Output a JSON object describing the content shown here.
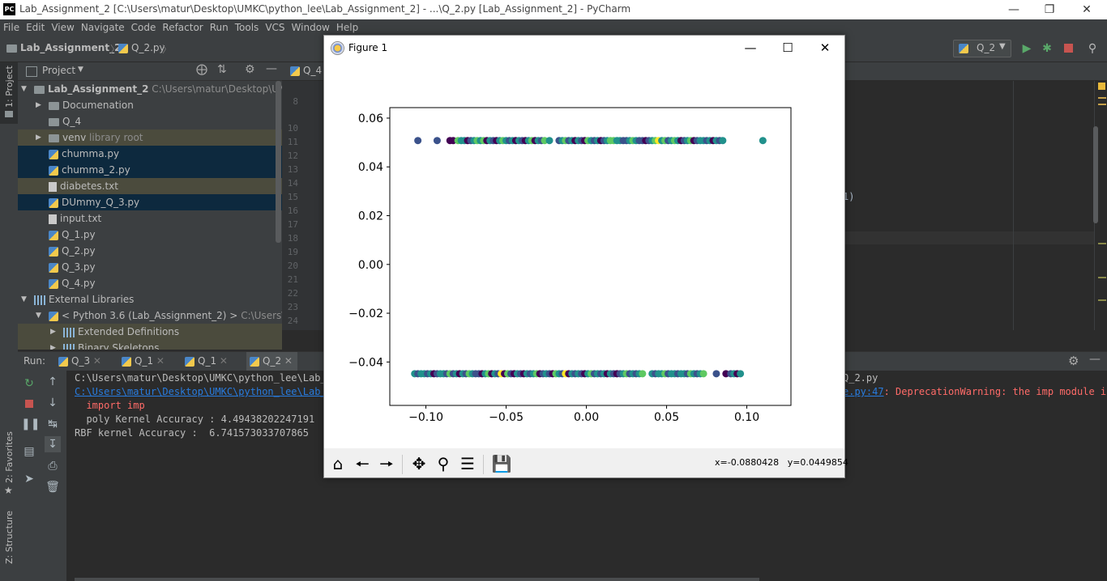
{
  "window": {
    "title": "Lab_Assignment_2 [C:\\Users\\matur\\Desktop\\UMKC\\python_lee\\Lab_Assignment_2] - ...\\Q_2.py [Lab_Assignment_2] - PyCharm",
    "logo": "PC",
    "controls": [
      "minimize-icon",
      "restore-icon",
      "close-icon"
    ]
  },
  "menu": [
    "File",
    "Edit",
    "View",
    "Navigate",
    "Code",
    "Refactor",
    "Run",
    "Tools",
    "VCS",
    "Window",
    "Help"
  ],
  "nav": {
    "project": "Lab_Assignment_2",
    "file": "Q_2.py",
    "run_config": "Q_2"
  },
  "left_stripe": {
    "project_tab": "1: Project",
    "favorites_tab": "2: Favorites",
    "structure_tab": "Z: Structure"
  },
  "project_panel": {
    "title": "Project",
    "tree": [
      {
        "label": "Lab_Assignment_2",
        "hint": "C:\\Users\\matur\\Desktop\\UMKC\\python_lee",
        "type": "folder",
        "level": 0,
        "expanded": true
      },
      {
        "label": "Documenation",
        "type": "folder",
        "level": 1,
        "expanded": false
      },
      {
        "label": "Q_4",
        "type": "folder",
        "level": 1
      },
      {
        "label": "venv",
        "hint": "library root",
        "type": "folder",
        "level": 1,
        "expanded": false,
        "style": "ign"
      },
      {
        "label": "chumma.py",
        "type": "py",
        "level": 1,
        "style": "sel"
      },
      {
        "label": "chumma_2.py",
        "type": "py",
        "level": 1,
        "style": "sel"
      },
      {
        "label": "diabetes.txt",
        "type": "txt",
        "level": 1,
        "style": "ign"
      },
      {
        "label": "DUmmy_Q_3.py",
        "type": "py",
        "level": 1,
        "style": "sel"
      },
      {
        "label": "input.txt",
        "type": "txt",
        "level": 1
      },
      {
        "label": "Q_1.py",
        "type": "py",
        "level": 1
      },
      {
        "label": "Q_2.py",
        "type": "py",
        "level": 1
      },
      {
        "label": "Q_3.py",
        "type": "py",
        "level": 1
      },
      {
        "label": "Q_4.py",
        "type": "py",
        "level": 1
      },
      {
        "label": "External Libraries",
        "type": "lib",
        "level": 0,
        "expanded": true
      },
      {
        "label": "< Python 3.6 (Lab_Assignment_2) >",
        "hint": "C:\\Users\\matu",
        "type": "py",
        "level": 1,
        "expanded": true
      },
      {
        "label": "Extended Definitions",
        "type": "lib",
        "level": 2,
        "expanded": false,
        "style": "ign"
      },
      {
        "label": "Binary Skeletons",
        "type": "lib",
        "level": 2,
        "expanded": false,
        "style": "ign"
      }
    ]
  },
  "editor": {
    "tab_label": "Q_4",
    "line_numbers": [
      "8",
      "10",
      "11",
      "12",
      "13",
      "14",
      "15",
      "16",
      "17",
      "18",
      "19",
      "20",
      "21",
      "22",
      "23",
      "24"
    ],
    "visible_fragment": "1)"
  },
  "run": {
    "label": "Run:",
    "tabs": [
      "Q_3",
      "Q_1",
      "Q_1",
      "Q_2"
    ],
    "console": [
      {
        "text": "C:\\Users\\matur\\Desktop\\UMKC\\python_lee\\Lab_A",
        "style": "normal"
      },
      {
        "text": "C:\\Users\\matur\\Desktop\\UMKC\\python_lee\\Lab_A",
        "style": "link"
      },
      {
        "text": "  import imp",
        "style": "err"
      },
      {
        "text": "  poly Kernel Accuracy : 4.49438202247191",
        "style": "normal"
      },
      {
        "text": "RBF kernel Accuracy :  6.741573033707865",
        "style": "normal"
      }
    ],
    "console_right": [
      {
        "text": "Q_2.py",
        "style": "normal"
      },
      {
        "text": "e.py:47",
        "style": "link"
      },
      {
        "text": ": DeprecationWarning: the imp module is",
        "style": "err"
      }
    ]
  },
  "figure": {
    "title": "Figure 1",
    "coords_x": "x=-0.0880428",
    "coords_y": "y=0.0449854",
    "toolbar": [
      "home-icon",
      "back-icon",
      "forward-icon",
      "pan-icon",
      "zoom-icon",
      "configure-icon",
      "save-icon"
    ]
  },
  "chart_data": {
    "type": "scatter",
    "title": "",
    "xlabel": "",
    "ylabel": "",
    "xlim": [
      -0.1225,
      0.1275
    ],
    "ylim": [
      -0.0578,
      0.0643
    ],
    "xticks": [
      "−0.10",
      "−0.05",
      "0.00",
      "0.05",
      "0.10"
    ],
    "yticks": [
      "0.06",
      "0.04",
      "0.02",
      "0.00",
      "−0.02",
      "−0.04"
    ],
    "xtick_values": [
      -0.1,
      -0.05,
      0.0,
      0.05,
      0.1
    ],
    "ytick_values": [
      0.06,
      0.04,
      0.02,
      0.0,
      -0.02,
      -0.04
    ],
    "colors": [
      "#440154",
      "#3b528b",
      "#21918c",
      "#5ec962",
      "#fde725"
    ],
    "series": [
      {
        "y": 0.0508,
        "x": [
          -0.105,
          -0.093,
          -0.085,
          -0.083,
          -0.08,
          -0.078,
          -0.076,
          -0.074,
          -0.072,
          -0.07,
          -0.068,
          -0.066,
          -0.064,
          -0.062,
          -0.06,
          -0.058,
          -0.056,
          -0.054,
          -0.052,
          -0.05,
          -0.048,
          -0.046,
          -0.044,
          -0.042,
          -0.04,
          -0.038,
          -0.036,
          -0.034,
          -0.032,
          -0.03,
          -0.028,
          -0.026,
          -0.023,
          -0.017,
          -0.015,
          -0.013,
          -0.011,
          -0.009,
          -0.007,
          -0.005,
          -0.003,
          -0.001,
          0.001,
          0.003,
          0.005,
          0.007,
          0.009,
          0.011,
          0.013,
          0.015,
          0.017,
          0.019,
          0.021,
          0.023,
          0.025,
          0.027,
          0.029,
          0.031,
          0.033,
          0.035,
          0.037,
          0.039,
          0.041,
          0.043,
          0.045,
          0.047,
          0.049,
          0.051,
          0.053,
          0.055,
          0.057,
          0.059,
          0.061,
          0.063,
          0.065,
          0.067,
          0.069,
          0.071,
          0.073,
          0.075,
          0.077,
          0.079,
          0.081,
          0.083,
          0.085,
          0.11
        ],
        "c": [
          1,
          1,
          0,
          0,
          3,
          2,
          2,
          0,
          1,
          2,
          3,
          2,
          3,
          0,
          2,
          1,
          0,
          2,
          3,
          2,
          1,
          2,
          0,
          2,
          1,
          0,
          2,
          3,
          0,
          2,
          1,
          3,
          2,
          1,
          2,
          3,
          1,
          2,
          0,
          2,
          1,
          0,
          3,
          2,
          1,
          2,
          0,
          1,
          2,
          3,
          3,
          2,
          2,
          1,
          1,
          2,
          3,
          2,
          1,
          1,
          0,
          1,
          2,
          3,
          4,
          2,
          3,
          1,
          2,
          3,
          2,
          0,
          1,
          2,
          3,
          0,
          1,
          2,
          2,
          1,
          2,
          0,
          2,
          1,
          2,
          2
        ]
      },
      {
        "y": -0.0448,
        "x": [
          -0.107,
          -0.105,
          -0.103,
          -0.101,
          -0.099,
          -0.097,
          -0.095,
          -0.093,
          -0.091,
          -0.089,
          -0.087,
          -0.085,
          -0.083,
          -0.081,
          -0.079,
          -0.077,
          -0.075,
          -0.073,
          -0.071,
          -0.069,
          -0.067,
          -0.065,
          -0.063,
          -0.061,
          -0.059,
          -0.057,
          -0.055,
          -0.053,
          -0.051,
          -0.049,
          -0.047,
          -0.045,
          -0.043,
          -0.041,
          -0.039,
          -0.037,
          -0.035,
          -0.033,
          -0.031,
          -0.029,
          -0.027,
          -0.025,
          -0.023,
          -0.021,
          -0.019,
          -0.017,
          -0.015,
          -0.013,
          -0.011,
          -0.009,
          -0.007,
          -0.005,
          -0.003,
          -0.001,
          0.001,
          0.003,
          0.005,
          0.007,
          0.009,
          0.011,
          0.013,
          0.015,
          0.017,
          0.019,
          0.021,
          0.023,
          0.025,
          0.027,
          0.029,
          0.031,
          0.033,
          0.035,
          0.041,
          0.043,
          0.045,
          0.047,
          0.049,
          0.051,
          0.053,
          0.055,
          0.057,
          0.059,
          0.061,
          0.063,
          0.065,
          0.067,
          0.069,
          0.071,
          0.073,
          0.081,
          0.087,
          0.09,
          0.092,
          0.094,
          0.096
        ],
        "c": [
          2,
          1,
          2,
          2,
          1,
          2,
          0,
          1,
          2,
          2,
          1,
          3,
          1,
          2,
          0,
          2,
          1,
          3,
          2,
          1,
          1,
          0,
          2,
          3,
          0,
          2,
          1,
          4,
          0,
          3,
          1,
          0,
          2,
          1,
          0,
          2,
          1,
          2,
          3,
          0,
          1,
          2,
          1,
          0,
          3,
          2,
          1,
          4,
          0,
          2,
          1,
          2,
          1,
          0,
          2,
          3,
          1,
          2,
          1,
          2,
          0,
          2,
          1,
          0,
          1,
          2,
          3,
          1,
          2,
          1,
          2,
          3,
          2,
          1,
          2,
          2,
          3,
          1,
          2,
          2,
          1,
          2,
          2,
          1,
          3,
          2,
          1,
          2,
          3,
          1,
          0,
          1,
          2,
          0,
          2
        ]
      }
    ]
  }
}
